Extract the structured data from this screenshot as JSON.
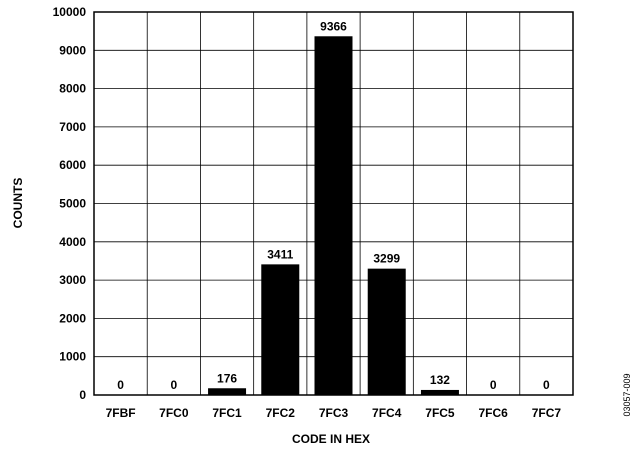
{
  "chart_data": {
    "type": "bar",
    "categories": [
      "7FBF",
      "7FC0",
      "7FC1",
      "7FC2",
      "7FC3",
      "7FC4",
      "7FC5",
      "7FC6",
      "7FC7"
    ],
    "values": [
      0,
      0,
      176,
      3411,
      9366,
      3299,
      132,
      0,
      0
    ],
    "data_labels": [
      "0",
      "0",
      "176",
      "3411",
      "9366",
      "3299",
      "132",
      "0",
      "0"
    ],
    "xlabel": "CODE IN HEX",
    "ylabel": "COUNTS",
    "ylim": [
      0,
      10000
    ],
    "yticks": [
      "0",
      "1000",
      "2000",
      "3000",
      "4000",
      "5000",
      "6000",
      "7000",
      "8000",
      "9000",
      "10000"
    ],
    "grid": true,
    "bar_color": "#000000"
  },
  "figure_id": "03057-009"
}
